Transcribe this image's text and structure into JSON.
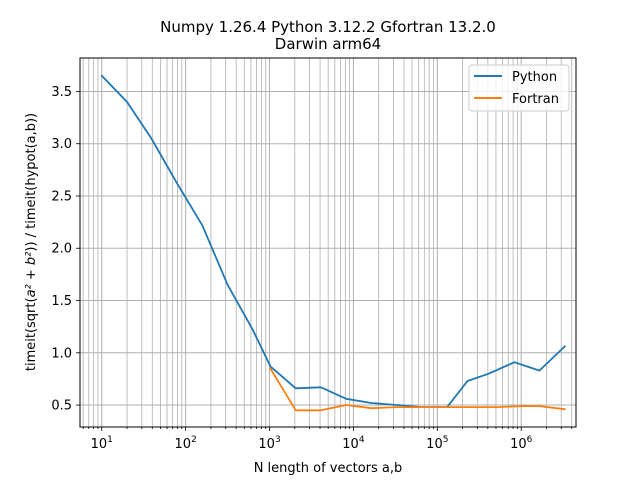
{
  "chart_data": {
    "type": "line",
    "title_line1": "Numpy 1.26.4 Python 3.12.2 Gfortran 13.2.0",
    "title_line2": "Darwin arm64",
    "xlabel": "N length of vectors a,b",
    "ylabel_prefix": "timeit(sqrt(",
    "ylabel_math": "a² + b²",
    "ylabel_suffix": ")) / timeit(hypot(a,b))",
    "xscale": "log",
    "xlim": [
      5.5,
      4500000
    ],
    "ylim": [
      0.29,
      3.82
    ],
    "grid": "major and minor",
    "legend_position": "top-right",
    "xticks": [
      {
        "value": 10,
        "base": "10",
        "exp": "1"
      },
      {
        "value": 100,
        "base": "10",
        "exp": "2"
      },
      {
        "value": 1000,
        "base": "10",
        "exp": "3"
      },
      {
        "value": 10000,
        "base": "10",
        "exp": "4"
      },
      {
        "value": 100000,
        "base": "10",
        "exp": "5"
      },
      {
        "value": 1000000,
        "base": "10",
        "exp": "6"
      }
    ],
    "yticks": [
      {
        "value": 0.5,
        "label": "0.5"
      },
      {
        "value": 1.0,
        "label": "1.0"
      },
      {
        "value": 1.5,
        "label": "1.5"
      },
      {
        "value": 2.0,
        "label": "2.0"
      },
      {
        "value": 2.5,
        "label": "2.5"
      },
      {
        "value": 3.0,
        "label": "3.0"
      },
      {
        "value": 3.5,
        "label": "3.5"
      }
    ],
    "series": [
      {
        "name": "Python",
        "color": "#1f77b4",
        "points": [
          [
            10,
            3.65
          ],
          [
            20,
            3.4
          ],
          [
            39,
            3.05
          ],
          [
            79,
            2.62
          ],
          [
            158,
            2.22
          ],
          [
            316,
            1.65
          ],
          [
            631,
            1.22
          ],
          [
            1024,
            0.87
          ],
          [
            2048,
            0.66
          ],
          [
            4096,
            0.67
          ],
          [
            8192,
            0.56
          ],
          [
            16384,
            0.52
          ],
          [
            32768,
            0.5
          ],
          [
            65536,
            0.48
          ],
          [
            131072,
            0.48
          ],
          [
            229000,
            0.73
          ],
          [
            410000,
            0.8
          ],
          [
            830000,
            0.91
          ],
          [
            1650000,
            0.83
          ],
          [
            3300000,
            1.06
          ]
        ]
      },
      {
        "name": "Fortran",
        "color": "#ff7f0e",
        "points": [
          [
            1024,
            0.85
          ],
          [
            2048,
            0.45
          ],
          [
            4096,
            0.45
          ],
          [
            8192,
            0.5
          ],
          [
            16384,
            0.47
          ],
          [
            32768,
            0.48
          ],
          [
            65536,
            0.48
          ],
          [
            131072,
            0.48
          ],
          [
            262144,
            0.48
          ],
          [
            524288,
            0.48
          ],
          [
            1048576,
            0.49
          ],
          [
            1650000,
            0.49
          ],
          [
            3300000,
            0.46
          ]
        ]
      }
    ]
  }
}
